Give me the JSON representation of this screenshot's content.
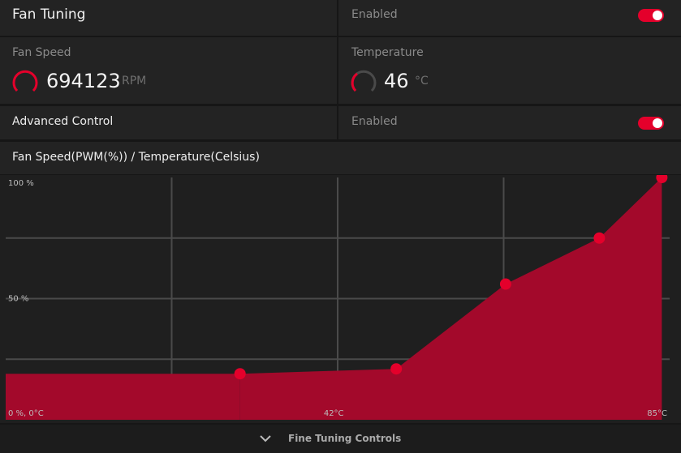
{
  "fan_tuning": {
    "label": "Fan Tuning",
    "status": "Enabled",
    "toggle_on": true
  },
  "fan_speed": {
    "label": "Fan Speed",
    "value": 694123,
    "unit": "RPM"
  },
  "temperature": {
    "label": "Temperature",
    "value": 46,
    "unit": "°C"
  },
  "advanced_control": {
    "label": "Advanced Control",
    "status": "Enabled",
    "toggle_on": true
  },
  "chart_data": {
    "type": "area",
    "title": "Fan Speed(PWM(%)) / Temperature(Celsius)",
    "x": [
      30,
      50,
      64,
      76,
      84
    ],
    "values": [
      19,
      21,
      56,
      75,
      100
    ],
    "color": "#a3092b",
    "point_color": "#e4002b",
    "xlim": [
      0,
      85
    ],
    "ylim": [
      0,
      100
    ],
    "xticks": [
      {
        "value": 42,
        "label": "42°C"
      },
      {
        "value": 85,
        "label": "85°C"
      }
    ],
    "yticks": [
      {
        "value": 0,
        "label": "0 %, 0°C"
      },
      {
        "value": 50,
        "label": "50 %"
      },
      {
        "value": 100,
        "label": "100 %"
      }
    ],
    "grid": true
  },
  "footer": {
    "label": "Fine Tuning Controls"
  }
}
